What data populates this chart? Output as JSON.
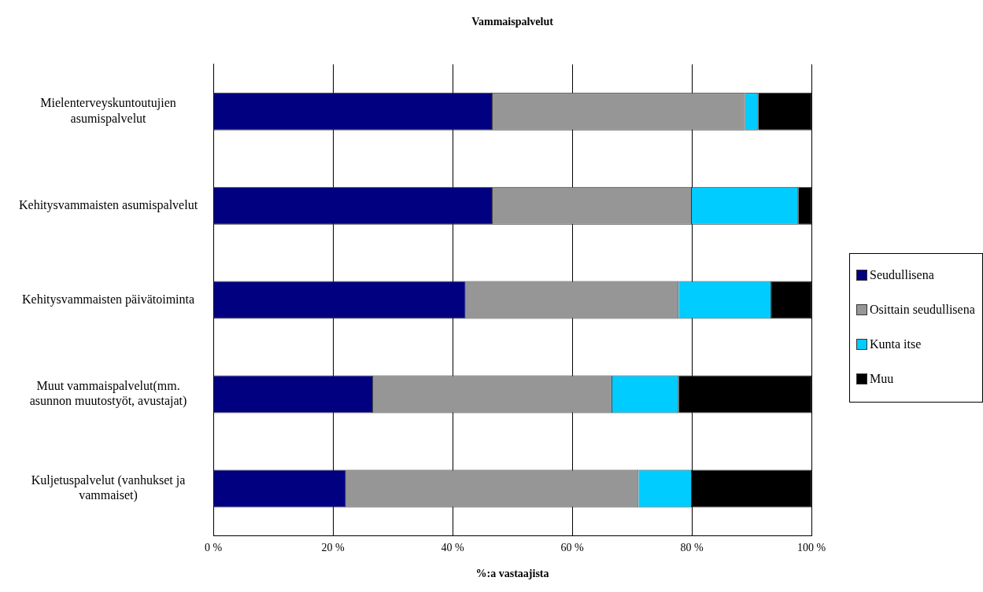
{
  "chart_data": {
    "type": "bar",
    "orientation": "horizontal",
    "stacked": true,
    "title": "Vammaispalvelut",
    "xlabel": "%:a vastaajista",
    "categories": [
      "Mielenterveyskuntoutujien asumispalvelut",
      "Kehitysvammaisten asumispalvelut",
      "Kehitysvammaisten päivätoiminta",
      "Muut vammaispalvelut(mm. asunnon muutostyöt, avustajat)",
      "Kuljetuspalvelut (vanhukset ja vammaiset)"
    ],
    "series": [
      {
        "name": "Seudullisena",
        "color": "#000080",
        "values": [
          46.7,
          46.7,
          42.2,
          26.7,
          22.2
        ]
      },
      {
        "name": "Osittain seudullisena",
        "color": "#969696",
        "values": [
          42.2,
          33.3,
          35.6,
          40.0,
          48.9
        ]
      },
      {
        "name": "Kunta itse",
        "color": "#00ccff",
        "values": [
          2.2,
          17.8,
          15.5,
          11.1,
          8.9
        ]
      },
      {
        "name": "Muu",
        "color": "#000000",
        "values": [
          8.9,
          2.2,
          6.7,
          22.2,
          20.0
        ]
      }
    ],
    "xlim": [
      0,
      100
    ],
    "xticks": [
      {
        "value": 0,
        "label": "0 %"
      },
      {
        "value": 20,
        "label": "20 %"
      },
      {
        "value": 40,
        "label": "40 %"
      },
      {
        "value": 60,
        "label": "60 %"
      },
      {
        "value": 80,
        "label": "80 %"
      },
      {
        "value": 100,
        "label": "100 %"
      }
    ],
    "grid": "x",
    "legend": "right"
  }
}
